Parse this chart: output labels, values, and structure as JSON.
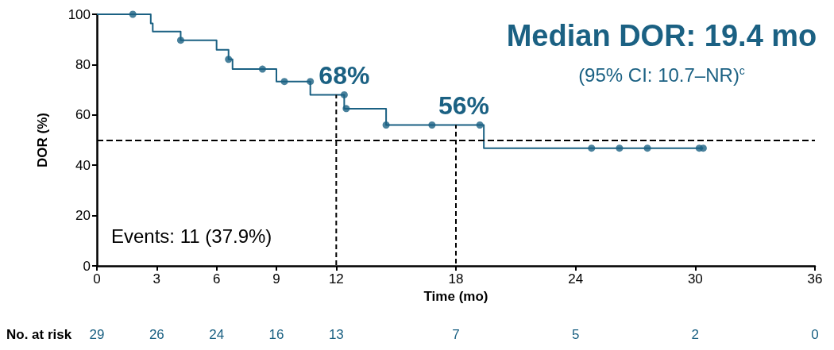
{
  "chart_data": {
    "type": "step",
    "title": "Median DOR: 19.4 mo",
    "subtitle": "(95% CI: 10.7–NR)$^{c}$",
    "xlabel": "Time (mo)",
    "ylabel": "DOR (%)",
    "xlim": [
      0,
      36
    ],
    "xticks": [
      0,
      3,
      6,
      9,
      12,
      18,
      24,
      30,
      36
    ],
    "ylim": [
      0,
      100
    ],
    "yticks": [
      0,
      20,
      40,
      60,
      80,
      100
    ],
    "grid": false,
    "marker": "none",
    "line_style": "solid",
    "series": [
      {
        "color": "#1b6183",
        "x": [
          0,
          2.7,
          2.8,
          4.2,
          6.0,
          6.6,
          6.8,
          9.0,
          10.7,
          12.4,
          14.5,
          19.4,
          30.4
        ],
        "values": [
          100,
          96.4,
          93.1,
          89.7,
          85.9,
          82.1,
          78.2,
          73.3,
          68,
          62.5,
          56,
          46.8,
          46.8
        ]
      },
      {
        "type": "scatter",
        "marker": "circle",
        "color": "#1b6183",
        "x": [
          1.8,
          4.2,
          6.6,
          8.3,
          9.4,
          10.7,
          12.4,
          12.5,
          14.5,
          16.8,
          19.2,
          24.8,
          26.2,
          27.6,
          30.2,
          30.4
        ],
        "values": [
          100,
          89.7,
          82.1,
          78.2,
          73.3,
          73.3,
          68,
          62.5,
          56,
          56,
          56,
          46.8,
          46.8,
          46.8,
          46.8,
          46.8
        ]
      },
      {
        "type": "line",
        "color": "#000000",
        "line_style": "dashed",
        "x": [
          12,
          12
        ],
        "values": [
          0,
          68
        ]
      },
      {
        "type": "line",
        "color": "#000000",
        "line_style": "dashed",
        "x": [
          18,
          18
        ],
        "values": [
          0,
          56
        ]
      }
    ],
    "ref_lines": [
      {
        "axis": "y",
        "value": 50,
        "color": "#000000",
        "line_style": "dashed"
      }
    ],
    "annotations": [
      "Events: 11 (37.9%)",
      "No. at risk",
      {
        "text": "68%",
        "x": 12,
        "y": 68
      },
      {
        "text": "56%",
        "x": 18,
        "y": 56
      },
      "29",
      "26",
      "24",
      "16",
      "13",
      "7",
      "5",
      "2",
      "0"
    ]
  }
}
